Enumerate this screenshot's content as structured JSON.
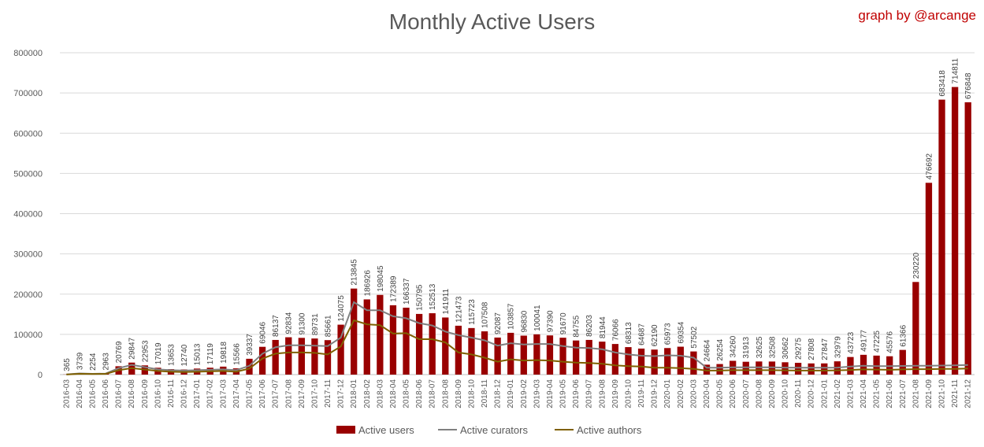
{
  "header": {
    "credit": "graph by @arcange"
  },
  "chart_data": {
    "type": "bar",
    "title": "Monthly Active Users",
    "xlabel": "",
    "ylabel": "",
    "ylim": [
      0,
      800000
    ],
    "yticks": [
      0,
      100000,
      200000,
      300000,
      400000,
      500000,
      600000,
      700000,
      800000
    ],
    "ytick_labels": [
      "0",
      "100000",
      "200000",
      "300000",
      "400000",
      "500000",
      "600000",
      "700000",
      "800000"
    ],
    "grid": true,
    "legend_position": "bottom",
    "categories": [
      "2016-03",
      "2016-04",
      "2016-05",
      "2016-06",
      "2016-07",
      "2016-08",
      "2016-09",
      "2016-10",
      "2016-11",
      "2016-12",
      "2017-01",
      "2017-02",
      "2017-03",
      "2017-04",
      "2017-05",
      "2017-06",
      "2017-07",
      "2017-08",
      "2017-09",
      "2017-10",
      "2017-11",
      "2017-12",
      "2018-01",
      "2018-02",
      "2018-03",
      "2018-04",
      "2018-05",
      "2018-06",
      "2018-07",
      "2018-08",
      "2018-09",
      "2018-10",
      "2018-11",
      "2018-12",
      "2019-01",
      "2019-02",
      "2019-03",
      "2019-04",
      "2019-05",
      "2019-06",
      "2019-07",
      "2019-08",
      "2019-09",
      "2019-10",
      "2019-11",
      "2019-12",
      "2020-01",
      "2020-02",
      "2020-03",
      "2020-04",
      "2020-05",
      "2020-06",
      "2020-07",
      "2020-08",
      "2020-09",
      "2020-10",
      "2020-11",
      "2020-12",
      "2021-01",
      "2021-02",
      "2021-03",
      "2021-04",
      "2021-05",
      "2021-06",
      "2021-07",
      "2021-08",
      "2021-09",
      "2021-10",
      "2021-11",
      "2021-12"
    ],
    "series": [
      {
        "name": "Active users",
        "kind": "bar",
        "color": "#990000",
        "values": [
          365,
          3739,
          2254,
          2963,
          20769,
          29847,
          22953,
          17019,
          13653,
          12740,
          15013,
          17119,
          19818,
          15566,
          39337,
          69046,
          86137,
          92834,
          91300,
          89731,
          85661,
          124075,
          213845,
          186926,
          198045,
          172389,
          166337,
          150795,
          152513,
          141911,
          121473,
          115723,
          107508,
          92087,
          103857,
          96830,
          100041,
          97390,
          91670,
          84755,
          86203,
          81944,
          76066,
          68313,
          64687,
          62190,
          65973,
          69354,
          57502,
          24664,
          26254,
          34260,
          31913,
          32625,
          32508,
          30662,
          29275,
          27808,
          27847,
          32979,
          43723,
          49177,
          47225,
          45576,
          61366,
          230220,
          476692,
          683418,
          714811,
          676848
        ]
      },
      {
        "name": "Active curators",
        "kind": "line",
        "color": "#808080",
        "values": [
          300,
          3000,
          1900,
          2500,
          16000,
          24000,
          18500,
          13000,
          11000,
          10000,
          11000,
          12000,
          13000,
          11000,
          22000,
          52000,
          68000,
          73000,
          73000,
          72000,
          71000,
          92000,
          180000,
          160000,
          160000,
          145000,
          140000,
          128000,
          122000,
          107000,
          98000,
          92000,
          85000,
          72000,
          78000,
          75000,
          76000,
          76000,
          71000,
          67000,
          66000,
          63000,
          55000,
          50000,
          47000,
          46000,
          48000,
          47000,
          42000,
          17000,
          17000,
          18000,
          18000,
          18000,
          18000,
          17500,
          17000,
          17000,
          17000,
          17500,
          20000,
          22000,
          21000,
          21000,
          21500,
          22000,
          22000,
          22500,
          23000,
          24000
        ]
      },
      {
        "name": "Active authors",
        "kind": "line",
        "color": "#7f6000",
        "values": [
          200,
          2000,
          1300,
          1700,
          11000,
          16000,
          12500,
          9000,
          7000,
          6500,
          7000,
          8000,
          9000,
          7000,
          15000,
          40000,
          52000,
          55000,
          55000,
          54000,
          50000,
          70000,
          135000,
          125000,
          123000,
          102000,
          103000,
          88000,
          88000,
          80000,
          55000,
          50000,
          42000,
          32000,
          38000,
          35000,
          36000,
          35000,
          32000,
          30000,
          29000,
          27000,
          23000,
          21000,
          20000,
          17000,
          17000,
          16000,
          14000,
          10000,
          10000,
          11000,
          11000,
          11000,
          11000,
          10500,
          10000,
          10000,
          10000,
          10500,
          11500,
          13000,
          12500,
          12000,
          13000,
          13500,
          13500,
          14000,
          14000,
          15000
        ]
      }
    ]
  }
}
